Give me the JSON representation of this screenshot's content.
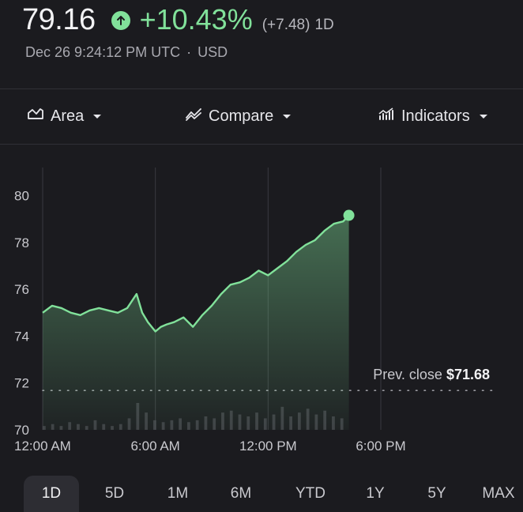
{
  "quote": {
    "price": "79.16",
    "change_pct": "+10.43%",
    "change_abs": "(+7.48)",
    "period": "1D",
    "timestamp": "Dec 26 9:24:12 PM UTC",
    "separator": "·",
    "currency": "USD",
    "up_icon": "arrow-up-circle-icon"
  },
  "toolbar": {
    "area": {
      "label": "Area",
      "icon": "area-chart-icon"
    },
    "compare": {
      "label": "Compare",
      "icon": "compare-icon"
    },
    "indicators": {
      "label": "Indicators",
      "icon": "indicators-icon"
    }
  },
  "colors": {
    "accent_green": "#81e19a",
    "background": "#1b1b1f",
    "grid": "#3a3a40"
  },
  "chart_data": {
    "type": "area",
    "y_ticks": [
      "80",
      "78",
      "76",
      "74",
      "72",
      "70"
    ],
    "ylim": [
      70,
      81
    ],
    "x_ticks": [
      "12:00 AM",
      "6:00 AM",
      "12:00 PM",
      "6:00 PM"
    ],
    "x_range_hours": [
      0,
      18
    ],
    "prev_close_label": "Prev. close",
    "prev_close_value": "$71.68",
    "prev_close": 71.68,
    "series": [
      {
        "x": [
          0,
          0.5,
          1,
          1.5,
          2,
          2.5,
          3,
          3.5,
          4,
          4.5,
          5,
          5.3,
          5.6,
          6,
          6.3,
          6.6,
          7,
          7.5,
          8,
          8.5,
          9,
          9.5,
          10,
          10.5,
          11,
          11.5,
          12,
          12.5,
          13,
          13.5,
          14,
          14.5,
          15,
          15.5,
          16,
          16.3
        ],
        "values": [
          75.0,
          75.3,
          75.2,
          75.0,
          74.9,
          75.1,
          75.2,
          75.1,
          75.0,
          75.2,
          75.8,
          75.0,
          74.6,
          74.2,
          74.4,
          74.5,
          74.6,
          74.8,
          74.4,
          74.9,
          75.3,
          75.8,
          76.2,
          76.3,
          76.5,
          76.8,
          76.6,
          76.9,
          77.2,
          77.6,
          77.9,
          78.1,
          78.5,
          78.8,
          78.9,
          79.16
        ]
      }
    ],
    "volume": [
      2,
      3,
      2,
      4,
      3,
      2,
      5,
      3,
      2,
      3,
      6,
      14,
      9,
      5,
      4,
      5,
      6,
      4,
      5,
      7,
      6,
      9,
      10,
      8,
      7,
      9,
      6,
      8,
      12,
      7,
      9,
      11,
      8,
      10,
      7,
      6
    ]
  },
  "range_tabs": [
    {
      "label": "1D",
      "active": true
    },
    {
      "label": "5D",
      "active": false
    },
    {
      "label": "1M",
      "active": false
    },
    {
      "label": "6M",
      "active": false
    },
    {
      "label": "YTD",
      "active": false
    },
    {
      "label": "1Y",
      "active": false
    },
    {
      "label": "5Y",
      "active": false
    },
    {
      "label": "MAX",
      "active": false
    }
  ]
}
